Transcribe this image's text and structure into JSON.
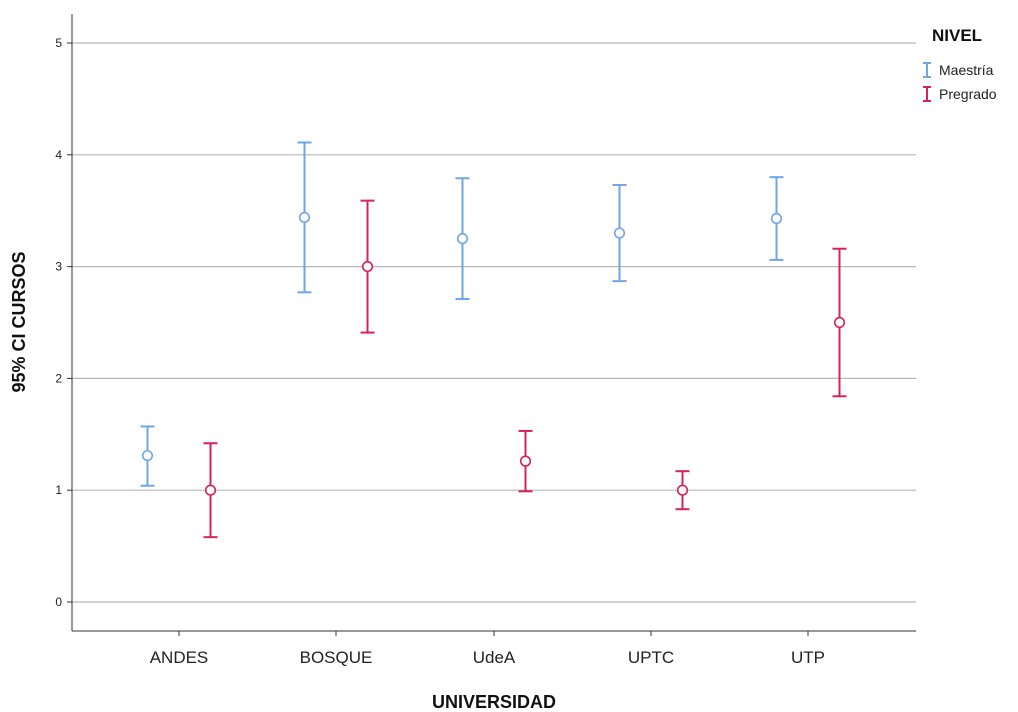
{
  "chart_data": {
    "type": "errorbar",
    "xlabel": "UNIVERSIDAD",
    "ylabel": "95% CI CURSOS",
    "ylim": [
      -0.25,
      5.25
    ],
    "yticks": [
      0,
      1,
      2,
      3,
      4,
      5
    ],
    "grid": true,
    "legend": {
      "title": "NIVEL",
      "position": "top-right"
    },
    "categories": [
      "ANDES",
      "BOSQUE",
      "UdeA",
      "UPTC",
      "UTP"
    ],
    "series": [
      {
        "name": "Maestría",
        "color": "#6ea6e6",
        "points": [
          {
            "category": "ANDES",
            "mean": 1.31,
            "lower": 1.04,
            "upper": 1.57
          },
          {
            "category": "BOSQUE",
            "mean": 3.44,
            "lower": 2.77,
            "upper": 4.11
          },
          {
            "category": "UdeA",
            "mean": 3.25,
            "lower": 2.71,
            "upper": 3.79
          },
          {
            "category": "UPTC",
            "mean": 3.3,
            "lower": 2.87,
            "upper": 3.73
          },
          {
            "category": "UTP",
            "mean": 3.43,
            "lower": 3.06,
            "upper": 3.8
          }
        ]
      },
      {
        "name": "Pregrado",
        "color": "#d5235a",
        "points": [
          {
            "category": "ANDES",
            "mean": 1.0,
            "lower": 0.58,
            "upper": 1.42
          },
          {
            "category": "BOSQUE",
            "mean": 3.0,
            "lower": 2.41,
            "upper": 3.59
          },
          {
            "category": "UdeA",
            "mean": 1.26,
            "lower": 0.99,
            "upper": 1.53
          },
          {
            "category": "UPTC",
            "mean": 1.0,
            "lower": 0.83,
            "upper": 1.17
          },
          {
            "category": "UTP",
            "mean": 2.5,
            "lower": 1.84,
            "upper": 3.16
          }
        ]
      }
    ]
  }
}
